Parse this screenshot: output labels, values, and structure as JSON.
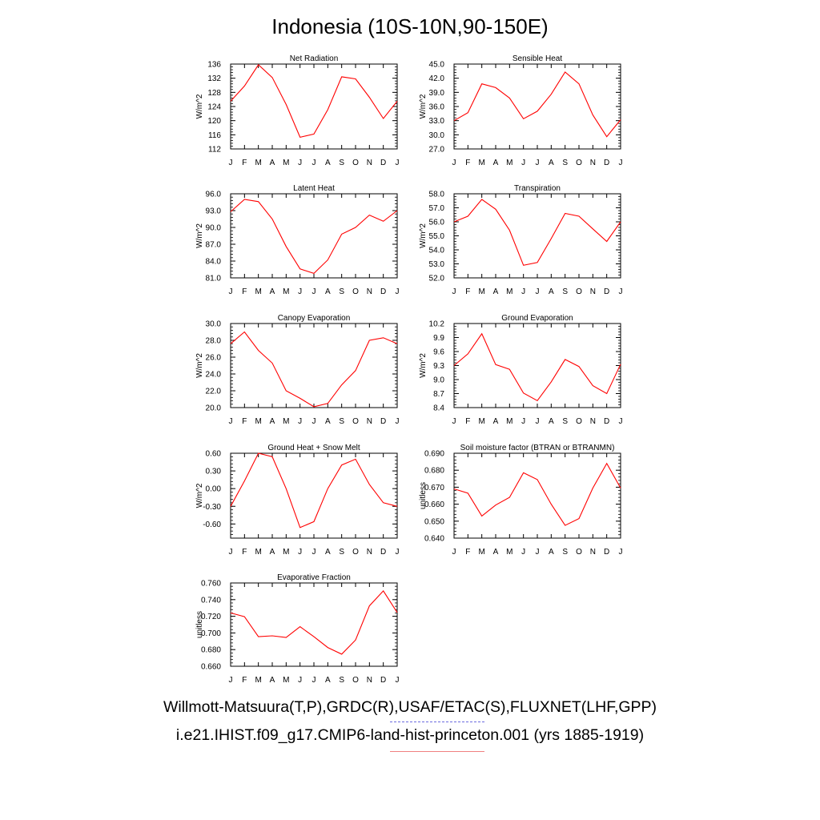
{
  "title": "Indonesia (10S-10N,90-150E)",
  "legend": {
    "observed_label": "Willmott-Matsuura(T,P),GRDC(R),USAF/ETAC(S),FLUXNET(LHF,GPP)",
    "model_label": "i.e21.IHIST.f09_g17.CMIP6-land-hist-princeton.001 (yrs 1885-1919)",
    "observed_color": "#6a6ae0",
    "model_color": "#f08080"
  },
  "colors": {
    "series_line": "#ff0000",
    "axis": "#000000"
  },
  "chart_data": [
    {
      "type": "line",
      "title": "Net Radiation",
      "ylabel": "W/m^2",
      "x": [
        "J",
        "F",
        "M",
        "A",
        "M",
        "J",
        "J",
        "A",
        "S",
        "O",
        "N",
        "D",
        "J"
      ],
      "ylim": [
        112,
        136
      ],
      "yticks": [
        "112",
        "116",
        "120",
        "124",
        "128",
        "132",
        "136"
      ],
      "series": [
        {
          "values": [
            125.5,
            129.8,
            135.8,
            132.2,
            124.6,
            115.3,
            116.2,
            123.1,
            132.4,
            131.8,
            126.6,
            120.6,
            125.5
          ]
        }
      ]
    },
    {
      "type": "line",
      "title": "Sensible Heat",
      "ylabel": "W/m^2",
      "x": [
        "J",
        "F",
        "M",
        "A",
        "M",
        "J",
        "J",
        "A",
        "S",
        "O",
        "N",
        "D",
        "J"
      ],
      "ylim": [
        27.0,
        45.0
      ],
      "yticks": [
        "27.0",
        "30.0",
        "33.0",
        "36.0",
        "39.0",
        "42.0",
        "45.0"
      ],
      "series": [
        {
          "values": [
            33.0,
            34.7,
            40.8,
            40.0,
            37.8,
            33.4,
            35.0,
            38.6,
            43.3,
            40.8,
            34.2,
            29.6,
            33.2
          ]
        }
      ]
    },
    {
      "type": "line",
      "title": "Latent Heat",
      "ylabel": "W/m^2",
      "x": [
        "J",
        "F",
        "M",
        "A",
        "M",
        "J",
        "J",
        "A",
        "S",
        "O",
        "N",
        "D",
        "J"
      ],
      "ylim": [
        81.0,
        96.0
      ],
      "yticks": [
        "81.0",
        "84.0",
        "87.0",
        "90.0",
        "93.0",
        "96.0"
      ],
      "series": [
        {
          "values": [
            92.8,
            95.0,
            94.6,
            91.5,
            86.6,
            82.6,
            81.8,
            84.2,
            88.8,
            90.0,
            92.2,
            91.1,
            93.0
          ]
        }
      ]
    },
    {
      "type": "line",
      "title": "Transpiration",
      "ylabel": "W/m^2",
      "x": [
        "J",
        "F",
        "M",
        "A",
        "M",
        "J",
        "J",
        "A",
        "S",
        "O",
        "N",
        "D",
        "J"
      ],
      "ylim": [
        52.0,
        58.0
      ],
      "yticks": [
        "52.0",
        "53.0",
        "54.0",
        "55.0",
        "56.0",
        "57.0",
        "58.0"
      ],
      "series": [
        {
          "values": [
            56.0,
            56.4,
            57.6,
            56.9,
            55.4,
            52.9,
            53.1,
            54.8,
            56.6,
            56.4,
            55.5,
            54.6,
            56.0
          ]
        }
      ]
    },
    {
      "type": "line",
      "title": "Canopy Evaporation",
      "ylabel": "W/m^2",
      "x": [
        "J",
        "F",
        "M",
        "A",
        "M",
        "J",
        "J",
        "A",
        "S",
        "O",
        "N",
        "D",
        "J"
      ],
      "ylim": [
        20.0,
        30.0
      ],
      "yticks": [
        "20.0",
        "22.0",
        "24.0",
        "26.0",
        "28.0",
        "30.0"
      ],
      "series": [
        {
          "values": [
            27.6,
            29.0,
            26.8,
            25.3,
            22.0,
            21.1,
            20.1,
            20.5,
            22.7,
            24.4,
            28.0,
            28.3,
            27.6
          ]
        }
      ]
    },
    {
      "type": "line",
      "title": "Ground Evaporation",
      "ylabel": "W/m^2",
      "x": [
        "J",
        "F",
        "M",
        "A",
        "M",
        "J",
        "J",
        "A",
        "S",
        "O",
        "N",
        "D",
        "J"
      ],
      "ylim": [
        8.4,
        10.2
      ],
      "yticks": [
        "8.4",
        "8.7",
        "9.0",
        "9.3",
        "9.6",
        "9.9",
        "10.2"
      ],
      "series": [
        {
          "values": [
            9.3,
            9.55,
            9.98,
            9.32,
            9.22,
            8.71,
            8.55,
            8.95,
            9.43,
            9.28,
            8.87,
            8.7,
            9.33
          ]
        }
      ]
    },
    {
      "type": "line",
      "title": "Ground Heat + Snow Melt",
      "ylabel": "W/m^2",
      "x": [
        "J",
        "F",
        "M",
        "A",
        "M",
        "J",
        "J",
        "A",
        "S",
        "O",
        "N",
        "D",
        "J"
      ],
      "ylim": [
        -0.84,
        0.6
      ],
      "yticks": [
        "-0.60",
        "-0.30",
        "0.00",
        "0.30",
        "0.60"
      ],
      "series": [
        {
          "values": [
            -0.3,
            0.13,
            0.6,
            0.54,
            0.0,
            -0.66,
            -0.56,
            0.0,
            0.4,
            0.5,
            0.07,
            -0.24,
            -0.3
          ]
        }
      ]
    },
    {
      "type": "line",
      "title": "Soil moisture factor (BTRAN or BTRANMN)",
      "ylabel": "unitless",
      "x": [
        "J",
        "F",
        "M",
        "A",
        "M",
        "J",
        "J",
        "A",
        "S",
        "O",
        "N",
        "D",
        "J"
      ],
      "ylim": [
        0.64,
        0.69
      ],
      "yticks": [
        "0.640",
        "0.650",
        "0.660",
        "0.670",
        "0.680",
        "0.690"
      ],
      "series": [
        {
          "values": [
            0.669,
            0.6665,
            0.653,
            0.6595,
            0.664,
            0.6785,
            0.6745,
            0.66,
            0.6475,
            0.6515,
            0.6695,
            0.684,
            0.6695
          ]
        }
      ]
    },
    {
      "type": "line",
      "title": "Evaporative Fraction",
      "ylabel": "unitless",
      "x": [
        "J",
        "F",
        "M",
        "A",
        "M",
        "J",
        "J",
        "A",
        "S",
        "O",
        "N",
        "D",
        "J"
      ],
      "ylim": [
        0.66,
        0.76
      ],
      "yticks": [
        "0.660",
        "0.680",
        "0.700",
        "0.720",
        "0.740",
        "0.760"
      ],
      "series": [
        {
          "values": [
            0.724,
            0.7195,
            0.6955,
            0.6965,
            0.6945,
            0.7075,
            0.6955,
            0.6825,
            0.6745,
            0.6915,
            0.7325,
            0.7505,
            0.7245
          ]
        }
      ]
    }
  ]
}
